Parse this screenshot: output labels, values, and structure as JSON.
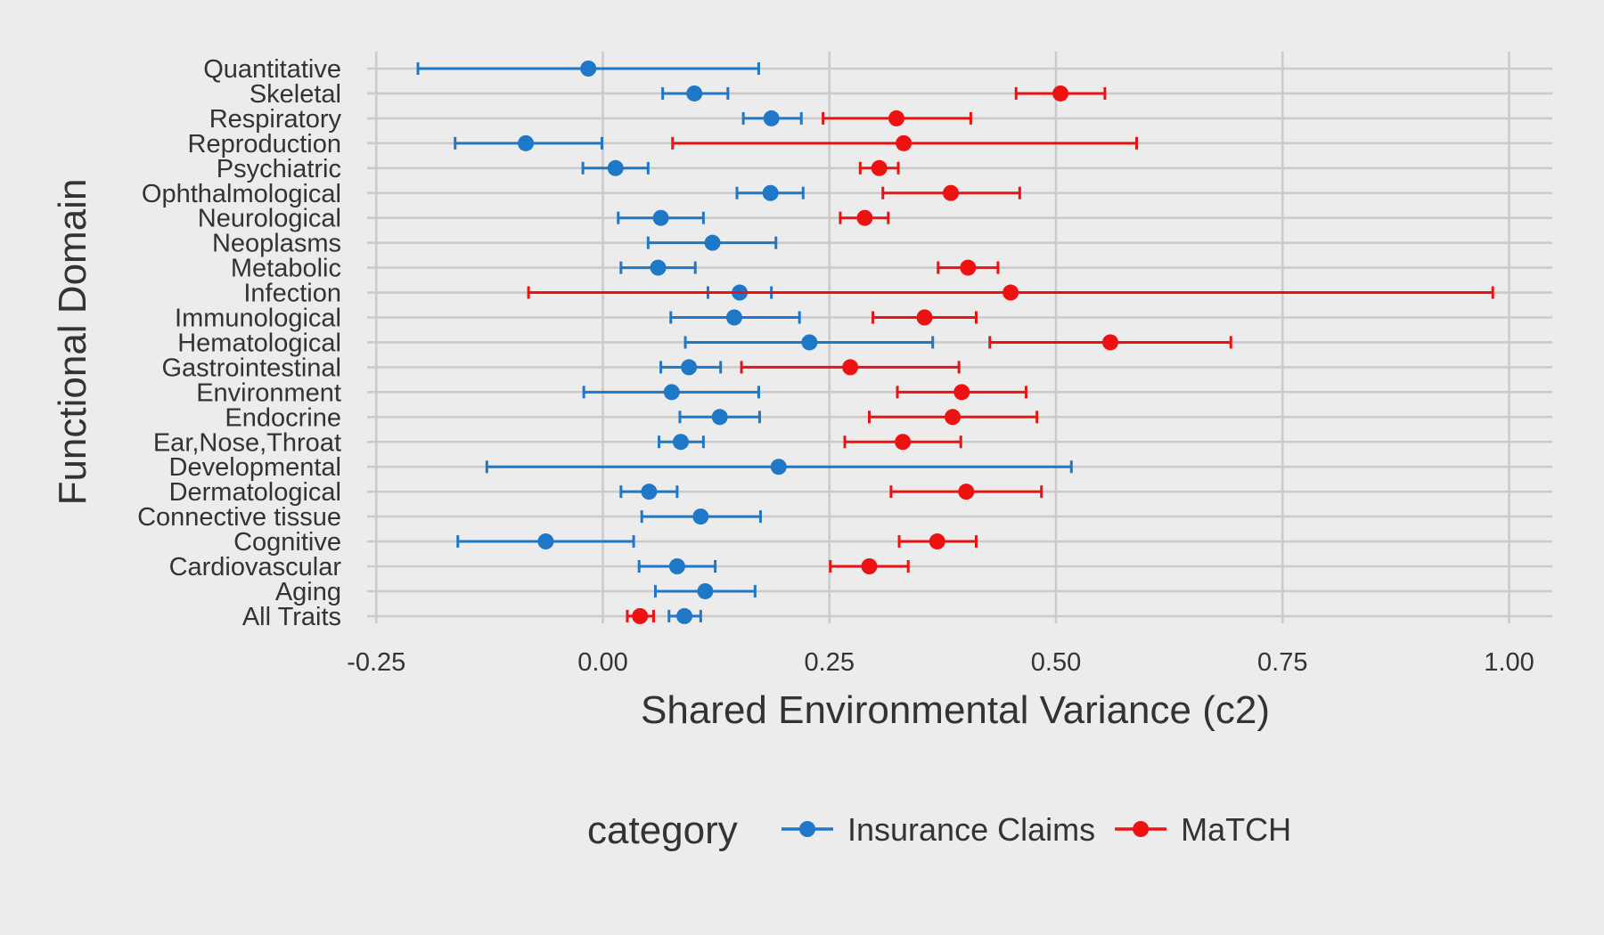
{
  "chart_data": {
    "type": "scatter",
    "xlabel": "Shared Environmental Variance (c2)",
    "ylabel": "Functional Domain",
    "xlim": [
      -0.25,
      1.04
    ],
    "x_ticks": [
      "-0.25",
      "0.00",
      "0.25",
      "0.50",
      "0.75",
      "1.00"
    ],
    "x_tick_values": [
      -0.25,
      0,
      0.25,
      0.5,
      0.75,
      1.0
    ],
    "grid": true,
    "legend_position": "bottom",
    "legend_title": "category",
    "categories": [
      "Quantitative",
      "Skeletal",
      "Respiratory",
      "Reproduction",
      "Psychiatric",
      "Ophthalmological",
      "Neurological",
      "Neoplasms",
      "Metabolic",
      "Infection",
      "Immunological",
      "Hematological",
      "Gastrointestinal",
      "Environment",
      "Endocrine",
      "Ear,Nose,Throat",
      "Developmental",
      "Dermatological",
      "Connective tissue",
      "Cognitive",
      "Cardiovascular",
      "Aging",
      "All Traits"
    ],
    "series": [
      {
        "name": "Insurance Claims",
        "color": "#1f77c8",
        "points": [
          {
            "category": "Quantitative",
            "value": -0.016,
            "lower": -0.204,
            "upper": 0.172
          },
          {
            "category": "Skeletal",
            "value": 0.101,
            "lower": 0.066,
            "upper": 0.138
          },
          {
            "category": "Respiratory",
            "value": 0.186,
            "lower": 0.155,
            "upper": 0.219
          },
          {
            "category": "Reproduction",
            "value": -0.085,
            "lower": -0.163,
            "upper": -0.001
          },
          {
            "category": "Psychiatric",
            "value": 0.014,
            "lower": -0.022,
            "upper": 0.05
          },
          {
            "category": "Ophthalmological",
            "value": 0.185,
            "lower": 0.148,
            "upper": 0.221
          },
          {
            "category": "Neurological",
            "value": 0.064,
            "lower": 0.017,
            "upper": 0.111
          },
          {
            "category": "Neoplasms",
            "value": 0.121,
            "lower": 0.05,
            "upper": 0.191
          },
          {
            "category": "Metabolic",
            "value": 0.061,
            "lower": 0.02,
            "upper": 0.102
          },
          {
            "category": "Infection",
            "value": 0.151,
            "lower": 0.116,
            "upper": 0.186
          },
          {
            "category": "Immunological",
            "value": 0.145,
            "lower": 0.075,
            "upper": 0.217
          },
          {
            "category": "Hematological",
            "value": 0.228,
            "lower": 0.091,
            "upper": 0.364
          },
          {
            "category": "Gastrointestinal",
            "value": 0.095,
            "lower": 0.064,
            "upper": 0.13
          },
          {
            "category": "Environment",
            "value": 0.076,
            "lower": -0.021,
            "upper": 0.172
          },
          {
            "category": "Endocrine",
            "value": 0.129,
            "lower": 0.085,
            "upper": 0.173
          },
          {
            "category": "Ear,Nose,Throat",
            "value": 0.086,
            "lower": 0.062,
            "upper": 0.111
          },
          {
            "category": "Developmental",
            "value": 0.194,
            "lower": -0.128,
            "upper": 0.517
          },
          {
            "category": "Dermatological",
            "value": 0.051,
            "lower": 0.02,
            "upper": 0.082
          },
          {
            "category": "Connective tissue",
            "value": 0.108,
            "lower": 0.043,
            "upper": 0.174
          },
          {
            "category": "Cognitive",
            "value": -0.063,
            "lower": -0.16,
            "upper": 0.034
          },
          {
            "category": "Cardiovascular",
            "value": 0.082,
            "lower": 0.04,
            "upper": 0.124
          },
          {
            "category": "Aging",
            "value": 0.113,
            "lower": 0.058,
            "upper": 0.168
          },
          {
            "category": "All Traits",
            "value": 0.09,
            "lower": 0.073,
            "upper": 0.108
          }
        ]
      },
      {
        "name": "MaTCH",
        "color": "#ee1111",
        "points": [
          {
            "category": "Skeletal",
            "value": 0.505,
            "lower": 0.456,
            "upper": 0.554
          },
          {
            "category": "Respiratory",
            "value": 0.324,
            "lower": 0.243,
            "upper": 0.406
          },
          {
            "category": "Reproduction",
            "value": 0.332,
            "lower": 0.077,
            "upper": 0.589
          },
          {
            "category": "Psychiatric",
            "value": 0.305,
            "lower": 0.284,
            "upper": 0.326
          },
          {
            "category": "Ophthalmological",
            "value": 0.384,
            "lower": 0.309,
            "upper": 0.46
          },
          {
            "category": "Neurological",
            "value": 0.289,
            "lower": 0.262,
            "upper": 0.315
          },
          {
            "category": "Metabolic",
            "value": 0.403,
            "lower": 0.37,
            "upper": 0.436
          },
          {
            "category": "Infection",
            "value": 0.45,
            "lower": -0.082,
            "upper": 0.982
          },
          {
            "category": "Immunological",
            "value": 0.355,
            "lower": 0.298,
            "upper": 0.412
          },
          {
            "category": "Hematological",
            "value": 0.56,
            "lower": 0.427,
            "upper": 0.693
          },
          {
            "category": "Gastrointestinal",
            "value": 0.273,
            "lower": 0.153,
            "upper": 0.393
          },
          {
            "category": "Environment",
            "value": 0.396,
            "lower": 0.325,
            "upper": 0.467
          },
          {
            "category": "Endocrine",
            "value": 0.386,
            "lower": 0.294,
            "upper": 0.479
          },
          {
            "category": "Ear,Nose,Throat",
            "value": 0.331,
            "lower": 0.267,
            "upper": 0.395
          },
          {
            "category": "Dermatological",
            "value": 0.401,
            "lower": 0.318,
            "upper": 0.484
          },
          {
            "category": "Cognitive",
            "value": 0.369,
            "lower": 0.327,
            "upper": 0.412
          },
          {
            "category": "Cardiovascular",
            "value": 0.294,
            "lower": 0.251,
            "upper": 0.337
          },
          {
            "category": "All Traits",
            "value": 0.041,
            "lower": 0.027,
            "upper": 0.056
          }
        ]
      }
    ]
  }
}
